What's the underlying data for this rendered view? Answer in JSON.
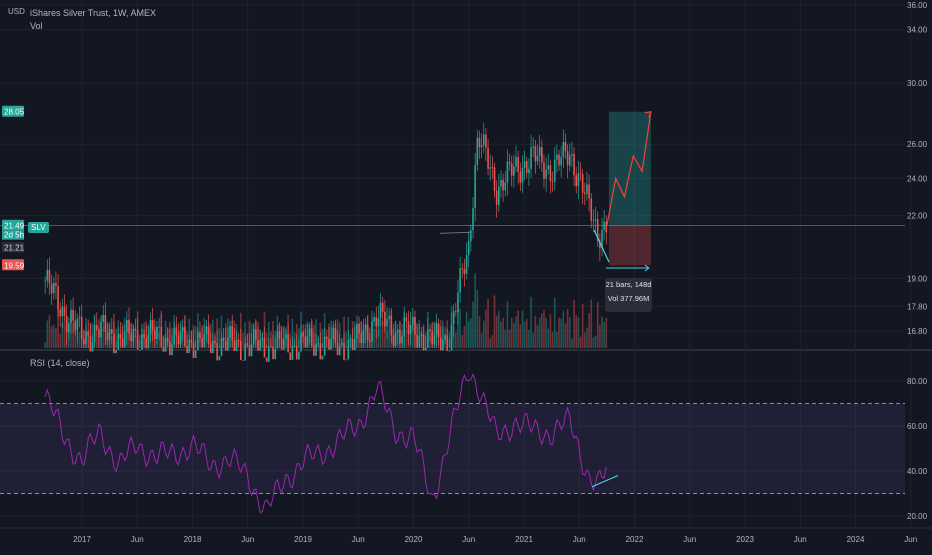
{
  "header": {
    "currency": "USD",
    "title": "iShares Silver Trust, 1W, AMEX",
    "vol_label": "Vol",
    "rsi_label": "RSI (14, close)"
  },
  "colors": {
    "background": "#131722",
    "up": "#26a69a",
    "down": "#ef5350",
    "rsi_line": "#9c27b0",
    "rsi_band": "#7e57c2",
    "trend_line": "#4dd0e1",
    "projection": "#f44336",
    "target_zone": "#26a69a",
    "stop_zone": "#ef5350"
  },
  "tags": {
    "target": "28.05",
    "current": "21.49",
    "ticker": "SLV",
    "countdown": "2d 5h",
    "entry": "21.21",
    "stop": "19.59"
  },
  "measure": {
    "bars": "21 bars, 148d",
    "vol": "Vol 377.96M"
  },
  "chart_data": [
    {
      "type": "candlestick",
      "title": "iShares Silver Trust, 1W, AMEX",
      "ylabel": "USD",
      "log_scale": true,
      "ylim": [
        16.1,
        36
      ],
      "y_ticks": [
        "16.80",
        "17.80",
        "19.00",
        "22.00",
        "24.00",
        "26.00",
        "30.00",
        "34.00",
        "36.00"
      ],
      "x_ticks": [
        "2017",
        "Jun",
        "2018",
        "Jun",
        "2019",
        "Jun",
        "2020",
        "Jun",
        "2021",
        "Jun",
        "2022",
        "Jun",
        "2023",
        "Jun",
        "2024",
        "Jun"
      ],
      "close_path": [
        [
          "2016-09",
          18.9
        ],
        [
          "2016-11",
          17.6
        ],
        [
          "2017-01",
          16.6
        ],
        [
          "2017-03",
          16.8
        ],
        [
          "2017-05",
          16.5
        ],
        [
          "2017-07",
          16.6
        ],
        [
          "2017-09",
          16.6
        ],
        [
          "2017-11",
          16.4
        ],
        [
          "2018-01",
          16.4
        ],
        [
          "2018-03",
          16.3
        ],
        [
          "2018-05",
          16.3
        ],
        [
          "2018-07",
          16.2
        ],
        [
          "2018-09",
          16.2
        ],
        [
          "2018-11",
          16.2
        ],
        [
          "2019-01",
          16.3
        ],
        [
          "2019-03",
          16.3
        ],
        [
          "2019-05",
          16.2
        ],
        [
          "2019-07",
          16.4
        ],
        [
          "2019-09",
          17.4
        ],
        [
          "2019-11",
          16.8
        ],
        [
          "2020-01",
          16.8
        ],
        [
          "2020-03",
          16.4
        ],
        [
          "2020-05",
          16.6
        ],
        [
          "2020-07",
          20.5
        ],
        [
          "2020-08",
          26.5
        ],
        [
          "2020-10",
          23.5
        ],
        [
          "2020-12",
          24.5
        ],
        [
          "2021-02",
          25.2
        ],
        [
          "2021-04",
          24.5
        ],
        [
          "2021-06",
          25.5
        ],
        [
          "2021-08",
          22.5
        ],
        [
          "2021-09",
          21.2
        ],
        [
          "2021-10",
          21.5
        ]
      ],
      "projection": [
        21.49,
        24.0,
        23.0,
        25.3,
        24.4,
        28.05
      ],
      "lines": {
        "current": 21.49,
        "entry": 21.21,
        "target": 28.05,
        "stop": 19.59
      }
    },
    {
      "type": "line",
      "title": "RSI (14, close)",
      "ylim": [
        17,
        90
      ],
      "y_ticks": [
        "20.00",
        "40.00",
        "60.00",
        "80.00"
      ],
      "bands": [
        30,
        70
      ],
      "path": [
        [
          "2016-09",
          73
        ],
        [
          "2016-11",
          56
        ],
        [
          "2017-01",
          44
        ],
        [
          "2017-03",
          58
        ],
        [
          "2017-05",
          42
        ],
        [
          "2017-07",
          52
        ],
        [
          "2017-09",
          46
        ],
        [
          "2017-11",
          48
        ],
        [
          "2018-01",
          51
        ],
        [
          "2018-03",
          43
        ],
        [
          "2018-05",
          45
        ],
        [
          "2018-07",
          38
        ],
        [
          "2018-09",
          22
        ],
        [
          "2018-11",
          36
        ],
        [
          "2019-01",
          44
        ],
        [
          "2019-03",
          48
        ],
        [
          "2019-05",
          54
        ],
        [
          "2019-07",
          60
        ],
        [
          "2019-09",
          77
        ],
        [
          "2019-11",
          58
        ],
        [
          "2020-01",
          55
        ],
        [
          "2020-03",
          27
        ],
        [
          "2020-05",
          56
        ],
        [
          "2020-07",
          86
        ],
        [
          "2020-08",
          78
        ],
        [
          "2020-10",
          55
        ],
        [
          "2020-12",
          62
        ],
        [
          "2021-02",
          58
        ],
        [
          "2021-04",
          57
        ],
        [
          "2021-06",
          62
        ],
        [
          "2021-08",
          38
        ],
        [
          "2021-09",
          33
        ],
        [
          "2021-10",
          40
        ]
      ],
      "trendline": [
        33,
        38
      ]
    }
  ]
}
